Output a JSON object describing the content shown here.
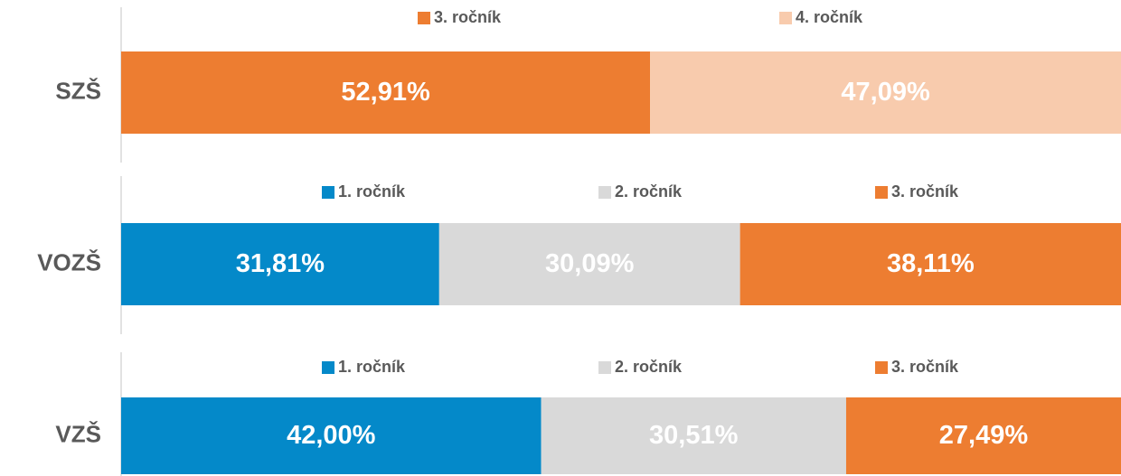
{
  "chart_data": [
    {
      "type": "bar",
      "orientation": "horizontal",
      "stacked": true,
      "categories": [
        "SZŠ"
      ],
      "xlim": [
        0,
        100
      ],
      "series": [
        {
          "name": "3. ročník",
          "color": "#ed7d31",
          "values": [
            52.91
          ],
          "value_labels": [
            "52,91%"
          ]
        },
        {
          "name": "4. ročník",
          "color": "#f8cbad",
          "values": [
            47.09
          ],
          "value_labels": [
            "47,09%"
          ]
        }
      ]
    },
    {
      "type": "bar",
      "orientation": "horizontal",
      "stacked": true,
      "categories": [
        "VOZŠ"
      ],
      "xlim": [
        0,
        100
      ],
      "series": [
        {
          "name": "1. ročník",
          "color": "#0489c9",
          "values": [
            31.81
          ],
          "value_labels": [
            "31,81%"
          ]
        },
        {
          "name": "2. ročník",
          "color": "#d9d9d9",
          "values": [
            30.09
          ],
          "value_labels": [
            "30,09%"
          ]
        },
        {
          "name": "3. ročník",
          "color": "#ed7d31",
          "values": [
            38.11
          ],
          "value_labels": [
            "38,11%"
          ]
        }
      ]
    },
    {
      "type": "bar",
      "orientation": "horizontal",
      "stacked": true,
      "categories": [
        "VZŠ"
      ],
      "xlim": [
        0,
        100
      ],
      "series": [
        {
          "name": "1. ročník",
          "color": "#0489c9",
          "values": [
            42.0
          ],
          "value_labels": [
            "42,00%"
          ]
        },
        {
          "name": "2. ročník",
          "color": "#d9d9d9",
          "values": [
            30.51
          ],
          "value_labels": [
            "30,51%"
          ]
        },
        {
          "name": "3. ročník",
          "color": "#ed7d31",
          "values": [
            27.49
          ],
          "value_labels": [
            "27,49%"
          ]
        }
      ]
    }
  ]
}
